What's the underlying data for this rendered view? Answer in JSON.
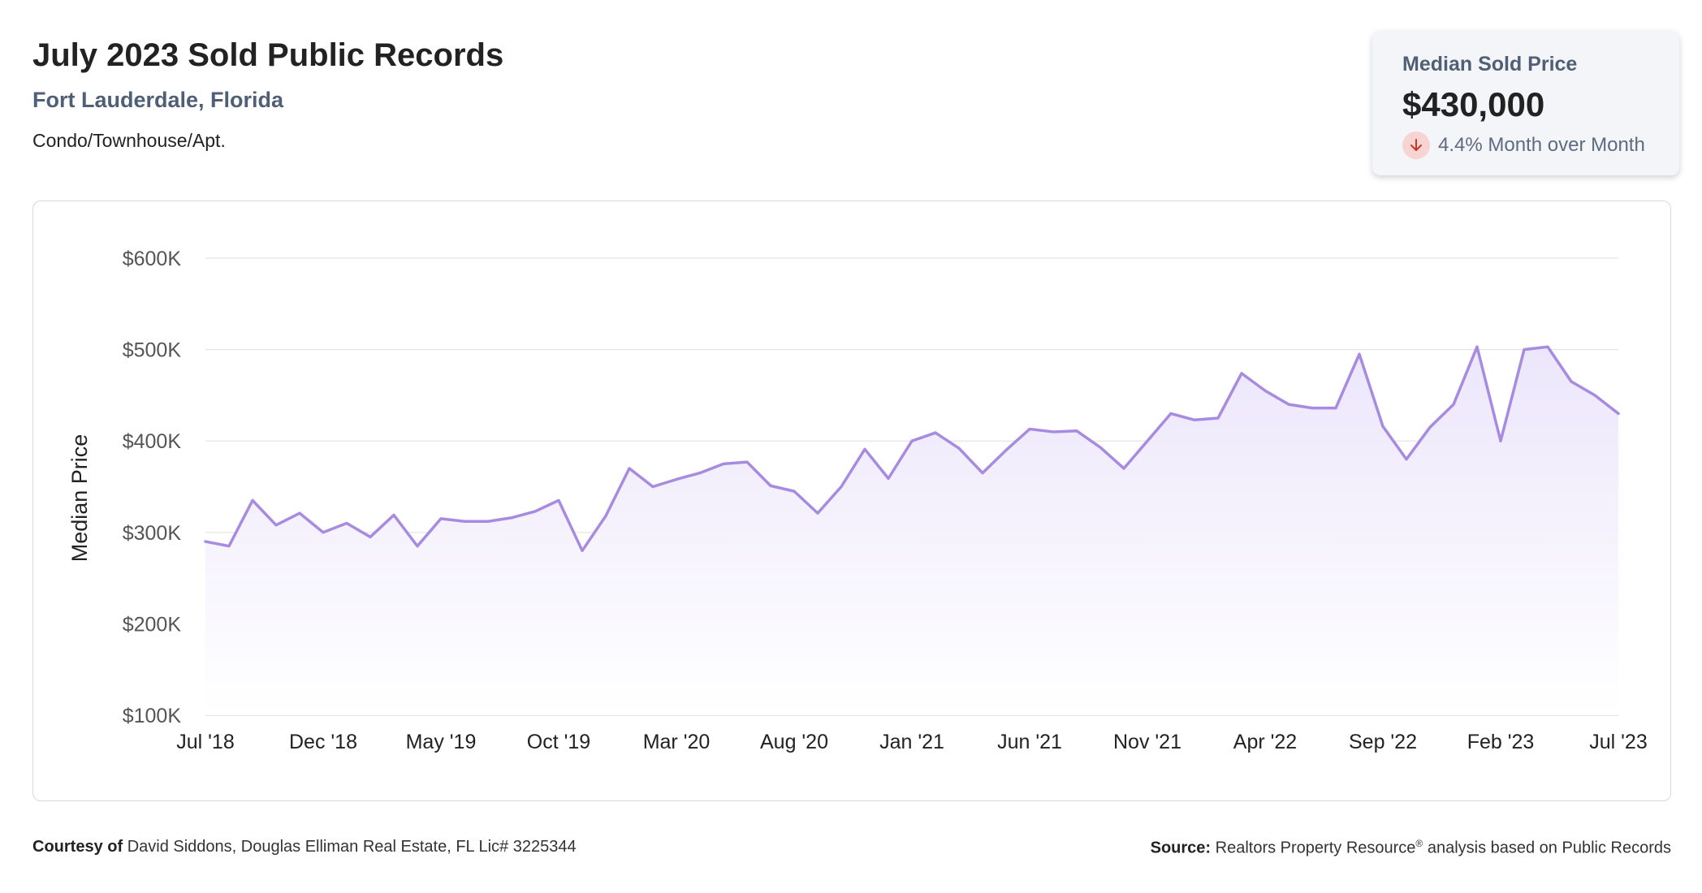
{
  "header": {
    "title": "July 2023 Sold Public Records",
    "location": "Fort Lauderdale, Florida",
    "property_type": "Condo/Townhouse/Apt."
  },
  "kpi": {
    "label": "Median Sold Price",
    "value": "$430,000",
    "change": "4.4% Month over Month",
    "direction": "down",
    "icon": "arrow-down-icon"
  },
  "footer": {
    "courtesy_label": "Courtesy of",
    "courtesy_text": "David Siddons, Douglas Elliman Real Estate, FL Lic# 3225344",
    "source_label": "Source:",
    "source_text_before": "Realtors Property Resource",
    "source_mark": "®",
    "source_text_after": " analysis based on Public Records"
  },
  "colors": {
    "line": "#a78be0",
    "area_top": "#ece6fb",
    "area_bottom": "#ffffff",
    "grid": "#e3e3e8",
    "kpi_down_bg": "#f7d4d1",
    "kpi_down_arrow": "#c0392b"
  },
  "chart_data": {
    "type": "area",
    "ylabel": "Median Price",
    "xlabel": "",
    "ylim": [
      100000,
      600000
    ],
    "y_ticks": [
      100000,
      200000,
      300000,
      400000,
      500000,
      600000
    ],
    "y_tick_labels": [
      "$100K",
      "$200K",
      "$300K",
      "$400K",
      "$500K",
      "$600K"
    ],
    "x_tick_labels": [
      "Jul '18",
      "Dec '18",
      "May '19",
      "Oct '19",
      "Mar '20",
      "Aug '20",
      "Jan '21",
      "Jun '21",
      "Nov '21",
      "Apr '22",
      "Sep '22",
      "Feb '23",
      "Jul '23"
    ],
    "x_tick_every": 5,
    "grid": true,
    "x": [
      "2018-07",
      "2018-08",
      "2018-09",
      "2018-10",
      "2018-11",
      "2018-12",
      "2019-01",
      "2019-02",
      "2019-03",
      "2019-04",
      "2019-05",
      "2019-06",
      "2019-07",
      "2019-08",
      "2019-09",
      "2019-10",
      "2019-11",
      "2019-12",
      "2020-01",
      "2020-02",
      "2020-03",
      "2020-04",
      "2020-05",
      "2020-06",
      "2020-07",
      "2020-08",
      "2020-09",
      "2020-10",
      "2020-11",
      "2020-12",
      "2021-01",
      "2021-02",
      "2021-03",
      "2021-04",
      "2021-05",
      "2021-06",
      "2021-07",
      "2021-08",
      "2021-09",
      "2021-10",
      "2021-11",
      "2021-12",
      "2022-01",
      "2022-02",
      "2022-03",
      "2022-04",
      "2022-05",
      "2022-06",
      "2022-07",
      "2022-08",
      "2022-09",
      "2022-10",
      "2022-11",
      "2022-12",
      "2023-01",
      "2023-02",
      "2023-03",
      "2023-04",
      "2023-05",
      "2023-06",
      "2023-07"
    ],
    "series": [
      {
        "name": "",
        "values": [
          290000,
          285000,
          335000,
          308000,
          321000,
          300000,
          310000,
          295000,
          319000,
          285000,
          315000,
          312000,
          312000,
          316000,
          323000,
          335000,
          280000,
          318000,
          370000,
          350000,
          358000,
          365000,
          375000,
          377000,
          351000,
          345000,
          321000,
          350000,
          391000,
          359000,
          400000,
          409000,
          392000,
          365000,
          390000,
          413000,
          410000,
          411000,
          393000,
          370000,
          400000,
          430000,
          423000,
          425000,
          474000,
          455000,
          440000,
          436000,
          436000,
          495000,
          416000,
          380000,
          415000,
          440000,
          503000,
          400000,
          500000,
          503000,
          465000,
          450000,
          430000
        ]
      }
    ]
  }
}
